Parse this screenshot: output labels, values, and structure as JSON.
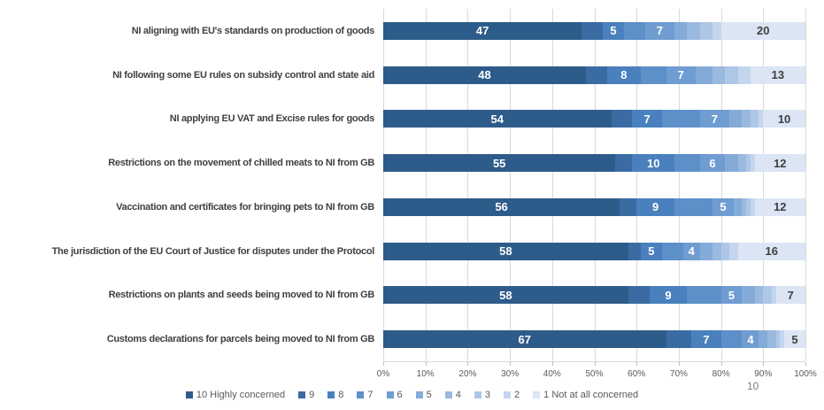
{
  "page": {
    "number": "10"
  },
  "chart_data": {
    "type": "bar",
    "stacked": true,
    "orientation": "horizontal",
    "title": "",
    "x_axis": {
      "min": 0,
      "max": 100,
      "tick_labels": [
        "0%",
        "10%",
        "20%",
        "30%",
        "40%",
        "50%",
        "60%",
        "70%",
        "80%",
        "90%",
        "100%"
      ],
      "gridlines": true
    },
    "series_names": [
      "10 Highly concerned",
      "9",
      "8",
      "7",
      "6",
      "5",
      "4",
      "3",
      "2",
      "1 Not at all concerned"
    ],
    "series_colors": [
      "#2e5c8a",
      "#3a6ca3",
      "#4a80bd",
      "#5d8fc9",
      "#6f9cd1",
      "#84abd8",
      "#99b9df",
      "#aec7e7",
      "#c4d5ee",
      "#dbe5f3"
    ],
    "labeled_series_indices": [
      0,
      2,
      4,
      9
    ],
    "label_colors": {
      "on_dark_segment": "#ffffff",
      "on_light_segment": "#404040"
    },
    "legend_position": "bottom",
    "rows": [
      {
        "category": "NI aligning with EU's standards on production of goods",
        "values": [
          47,
          5,
          5,
          5,
          7,
          3,
          3,
          3,
          2,
          20
        ]
      },
      {
        "category": "NI following some EU rules on subsidy control and state aid",
        "values": [
          48,
          5,
          8,
          6,
          7,
          4,
          3,
          3,
          3,
          13
        ]
      },
      {
        "category": "NI applying EU VAT and Excise rules for goods",
        "values": [
          54,
          5,
          7,
          9,
          7,
          3,
          2,
          2,
          1,
          10
        ]
      },
      {
        "category": "Restrictions on the movement of chilled meats to NI from GB",
        "values": [
          55,
          4,
          10,
          6,
          6,
          3,
          2,
          1,
          1,
          12
        ]
      },
      {
        "category": "Vaccination and certificates for bringing pets to NI from GB",
        "values": [
          56,
          4,
          9,
          9,
          5,
          2,
          1,
          1,
          1,
          12
        ]
      },
      {
        "category": "The jurisdiction of the EU Court of Justice for disputes under  the Protocol",
        "values": [
          58,
          3,
          5,
          5,
          4,
          3,
          2,
          2,
          2,
          16
        ]
      },
      {
        "category": "Restrictions on plants and seeds being moved to NI from GB",
        "values": [
          58,
          5,
          9,
          8,
          5,
          3,
          2,
          2,
          1,
          7
        ]
      },
      {
        "category": "Customs declarations for parcels being moved to NI from GB",
        "values": [
          67,
          6,
          7,
          5,
          4,
          2,
          2,
          1,
          1,
          5
        ]
      }
    ]
  }
}
